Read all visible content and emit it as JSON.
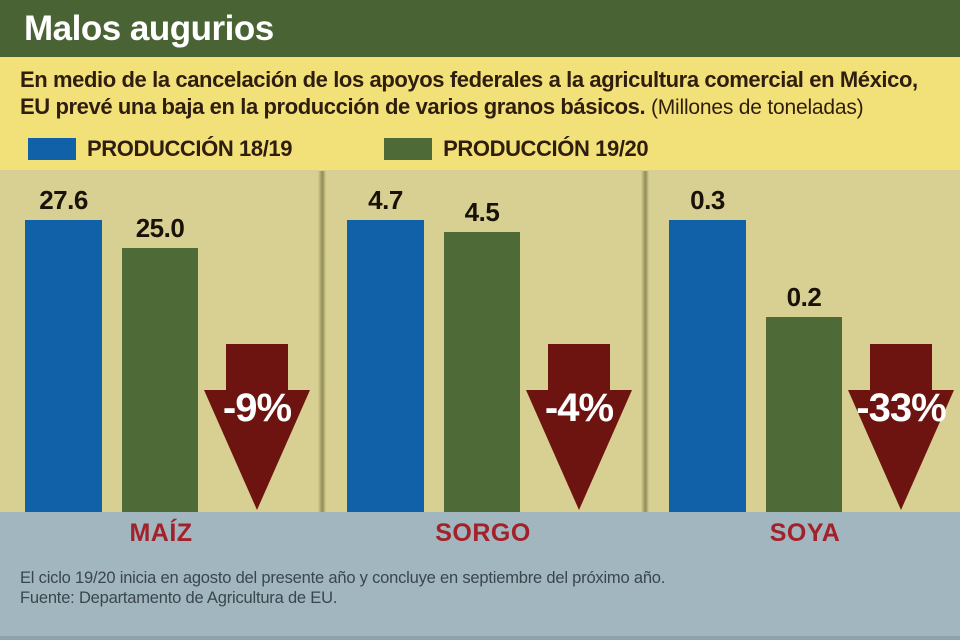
{
  "header": {
    "title": "Malos augurios"
  },
  "intro": {
    "description_line1": "En medio de la cancelación de los apoyos federales a la agricultura comercial en México,",
    "description_line2": "EU prevé una baja en la producción de varios granos básicos.",
    "units_note": "(Millones de toneladas)"
  },
  "legend": {
    "series1": {
      "label": "PRODUCCIÓN 18/19",
      "color": "#1161a8"
    },
    "series2": {
      "label": "PRODUCCIÓN 19/20",
      "color": "#4e6a36"
    }
  },
  "chart_data": {
    "type": "bar",
    "title": "Malos augurios",
    "subtitle": "En medio de la cancelación de los apoyos federales a la agricultura comercial en México, EU prevé una baja en la producción de varios granos básicos.",
    "units": "Millones de toneladas",
    "categories": [
      "MAÍZ",
      "SORGO",
      "SOYA"
    ],
    "series": [
      {
        "name": "PRODUCCIÓN 18/19",
        "color": "#1161a8",
        "values": [
          27.6,
          4.7,
          0.3
        ],
        "labels": [
          "27.6",
          "4.7",
          "0.3"
        ]
      },
      {
        "name": "PRODUCCIÓN 19/20",
        "color": "#4e6a36",
        "values": [
          25.0,
          4.5,
          0.2
        ],
        "labels": [
          "25.0",
          "4.5",
          "0.2"
        ]
      }
    ],
    "change_labels": [
      "-9%",
      "-4%",
      "-33%"
    ],
    "arrow_color": "#6d1310",
    "layout_hints": {
      "legend_position": "top",
      "grid": false,
      "per_group_normalized_scale": true,
      "category_label_color": "#a3212a",
      "background": "#d7d092"
    }
  },
  "footer": {
    "note": "El ciclo 19/20 inicia en agosto del presente año y concluye en septiembre del próximo año.",
    "source": "Fuente: Departamento de Agricultura de EU."
  }
}
